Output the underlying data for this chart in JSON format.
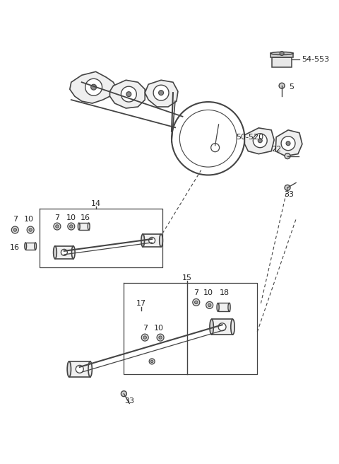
{
  "bg_color": "#ffffff",
  "line_color": "#444444",
  "text_color": "#222222",
  "fig_width": 4.8,
  "fig_height": 6.56,
  "dpi": 100
}
